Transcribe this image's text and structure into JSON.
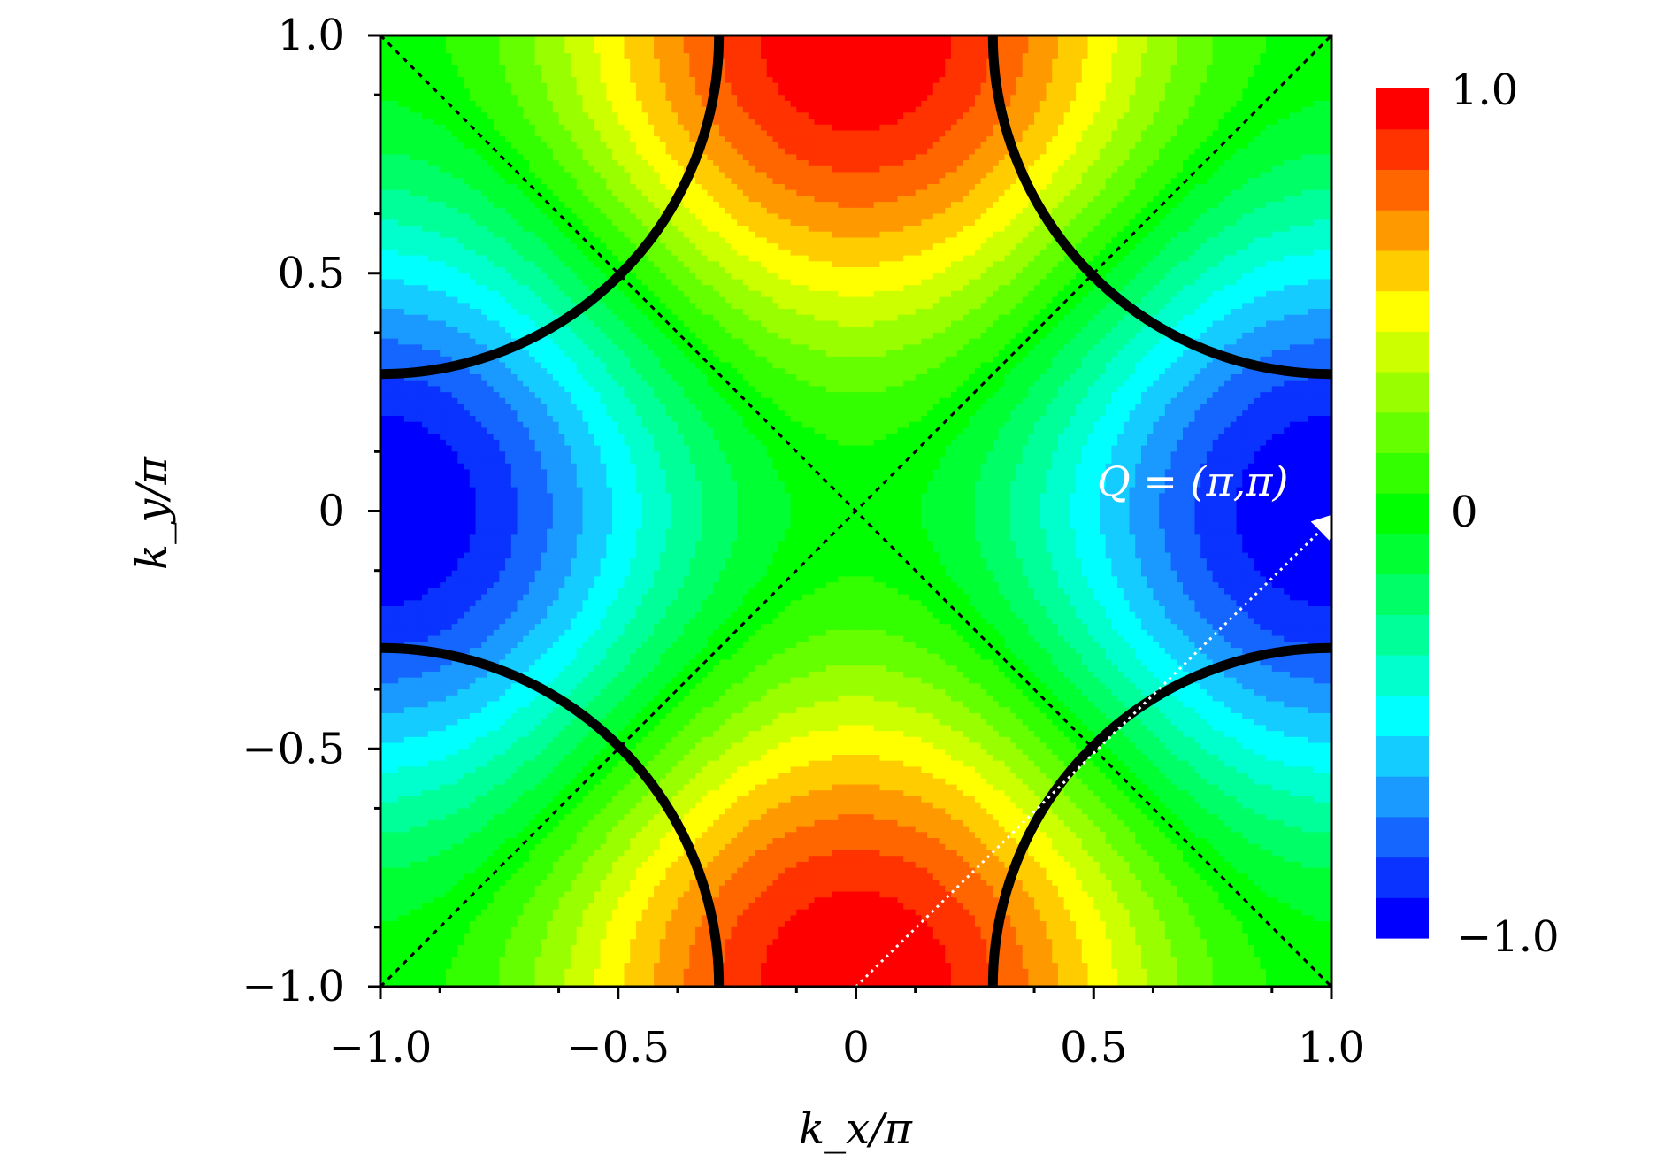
{
  "chart_data": {
    "type": "heatmap",
    "function": "0.5*(cos(kx) - cos(ky))",
    "x": {
      "min": -1.0,
      "max": 1.0
    },
    "y": {
      "min": -1.0,
      "max": 1.0
    },
    "zlim": [
      -1.0,
      1.0
    ],
    "contour_levels": 22,
    "fermi_arc_radius": 0.712,
    "xlabel": "k_x/π",
    "ylabel": "k_y/π",
    "x_ticks": [
      -1.0,
      -0.5,
      0,
      0.5,
      1.0
    ],
    "x_tick_labels": [
      "−1.0",
      "−0.5",
      "0",
      "0.5",
      "1.0"
    ],
    "y_ticks": [
      -1.0,
      -0.5,
      0,
      0.5,
      1.0
    ],
    "y_tick_labels": [
      "−1.0",
      "−0.5",
      "0",
      "0.5",
      "1.0"
    ],
    "colorbar_tick_labels": [
      "1.0",
      "0",
      "−1.0"
    ],
    "annotation": "Q = (π,π)",
    "colors": [
      "#0000ff",
      "#0a33ff",
      "#1466ff",
      "#1a99ff",
      "#14ccff",
      "#00ffff",
      "#00ffcc",
      "#00ff99",
      "#00ff66",
      "#00ff33",
      "#00ff00",
      "#33ff00",
      "#66ff00",
      "#99ff00",
      "#ccff00",
      "#ffff00",
      "#ffcc00",
      "#ff9900",
      "#ff6600",
      "#ff3300",
      "#ff0000"
    ]
  }
}
